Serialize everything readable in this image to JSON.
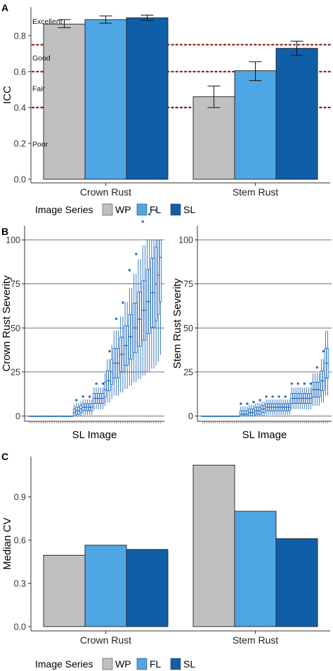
{
  "colors": {
    "WP": "#c0c0c0",
    "FL": "#4ea6e4",
    "SL": "#0f5fa8",
    "threshold": "#8b1a1a",
    "box": "#2a6fc0"
  },
  "panel_labels": [
    "A",
    "B",
    "C"
  ],
  "legend": {
    "title": "Image Series",
    "items": [
      "WP",
      "FL",
      "SL"
    ]
  },
  "chart_data": [
    {
      "panel": "A",
      "type": "bar",
      "ylabel": "ICC",
      "xlabel": "",
      "categories": [
        "Crown Rust",
        "Stem Rust"
      ],
      "series": [
        {
          "name": "WP",
          "values": [
            0.865,
            0.46
          ],
          "err_low": [
            0.845,
            0.4
          ],
          "err_high": [
            0.89,
            0.52
          ]
        },
        {
          "name": "FL",
          "values": [
            0.89,
            0.605
          ],
          "err_low": [
            0.87,
            0.55
          ],
          "err_high": [
            0.91,
            0.655
          ]
        },
        {
          "name": "SL",
          "values": [
            0.9,
            0.73
          ],
          "err_low": [
            0.885,
            0.69
          ],
          "err_high": [
            0.915,
            0.77
          ]
        }
      ],
      "ylim": [
        -0.02,
        0.96
      ],
      "yticks": [
        "0.0",
        "0.2",
        "0.4",
        "0.6",
        "0.8"
      ],
      "thresholds": [
        0.4,
        0.6,
        0.75
      ],
      "zone_labels": [
        {
          "text": "Excellent",
          "y": 0.88
        },
        {
          "text": "Good",
          "y": 0.675
        },
        {
          "text": "Fair",
          "y": 0.505
        },
        {
          "text": "Poor",
          "y": 0.195
        }
      ],
      "grid": false,
      "legend": "bottom"
    },
    {
      "panel": "B-left",
      "type": "box",
      "ylabel": "Crown Rust Severity",
      "xlabel": "SL Image",
      "ylim": [
        -3,
        108
      ],
      "yticks": [
        "0",
        "25",
        "50",
        "75",
        "100"
      ],
      "n_images": 60,
      "medians": [
        0,
        0,
        0,
        0,
        0,
        0,
        0,
        0,
        0,
        0,
        0,
        0,
        0,
        0,
        0,
        0,
        0,
        0,
        0,
        0,
        2,
        3,
        3,
        4,
        5,
        5,
        5,
        5,
        5,
        10,
        10,
        10,
        10,
        10,
        15,
        20,
        20,
        25,
        30,
        30,
        30,
        35,
        35,
        40,
        40,
        45,
        45,
        50,
        50,
        55,
        55,
        60,
        60,
        65,
        65,
        70,
        70,
        75,
        80,
        90
      ],
      "grid": "horizontal"
    },
    {
      "panel": "B-right",
      "type": "box",
      "ylabel": "Stem Rust Severity",
      "xlabel": "SL Image",
      "ylim": [
        -3,
        108
      ],
      "yticks": [
        "0",
        "25",
        "50",
        "75",
        "100"
      ],
      "n_images": 60,
      "medians": [
        0,
        0,
        0,
        0,
        0,
        0,
        0,
        0,
        0,
        0,
        0,
        0,
        0,
        0,
        0,
        0,
        0,
        0,
        1,
        1,
        1,
        1,
        2,
        2,
        2,
        3,
        3,
        3,
        4,
        4,
        5,
        5,
        5,
        5,
        5,
        5,
        5,
        5,
        5,
        5,
        5,
        5,
        10,
        10,
        10,
        10,
        10,
        10,
        10,
        10,
        10,
        10,
        15,
        15,
        15,
        15,
        20,
        20,
        30,
        30
      ],
      "grid": "horizontal"
    },
    {
      "panel": "C",
      "type": "bar",
      "ylabel": "Median CV",
      "xlabel": "",
      "categories": [
        "Crown Rust",
        "Stem Rust"
      ],
      "series": [
        {
          "name": "WP",
          "values": [
            0.495,
            1.12
          ]
        },
        {
          "name": "FL",
          "values": [
            0.565,
            0.8
          ]
        },
        {
          "name": "SL",
          "values": [
            0.535,
            0.61
          ]
        }
      ],
      "ylim": [
        -0.03,
        1.18
      ],
      "yticks": [
        "0.0",
        "0.3",
        "0.6",
        "0.9"
      ],
      "grid": false,
      "legend": "bottom"
    }
  ]
}
